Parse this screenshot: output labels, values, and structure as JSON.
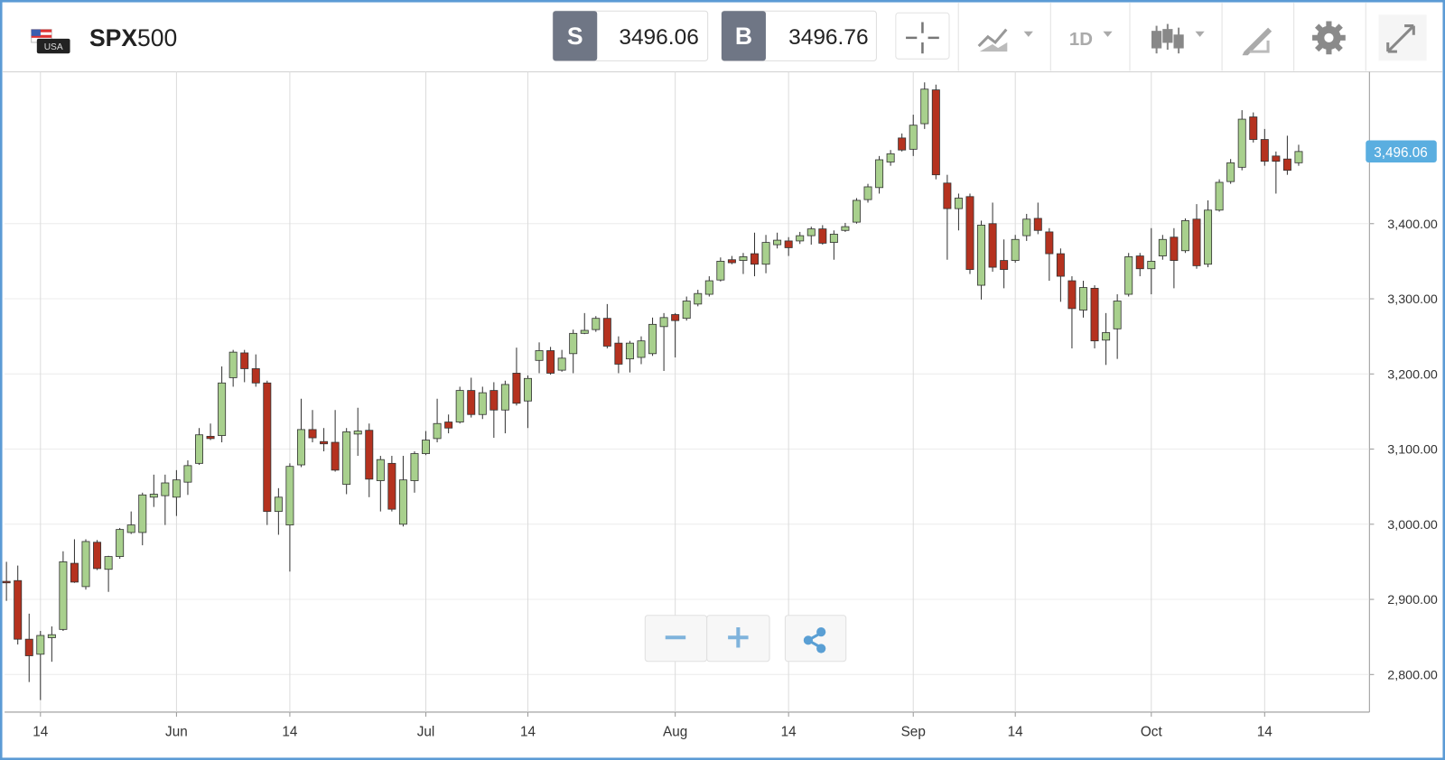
{
  "header": {
    "symbol": {
      "bold": "SPX",
      "rest": "500"
    },
    "flag_label": "USA",
    "sell": {
      "label": "S",
      "price": 3496.06
    },
    "buy": {
      "label": "B",
      "price": 3496.76
    },
    "interval": "1D"
  },
  "chart_data": {
    "type": "candlestick",
    "categories": [
      null,
      null,
      null,
      "14",
      null,
      null,
      null,
      null,
      null,
      null,
      null,
      null,
      null,
      null,
      null,
      "Jun",
      null,
      null,
      null,
      null,
      null,
      null,
      null,
      null,
      null,
      "14",
      null,
      null,
      null,
      null,
      null,
      null,
      null,
      null,
      null,
      null,
      null,
      "Jul",
      null,
      null,
      null,
      null,
      null,
      null,
      null,
      null,
      "14",
      null,
      null,
      null,
      null,
      null,
      null,
      null,
      null,
      null,
      null,
      null,
      null,
      "Aug",
      null,
      null,
      null,
      null,
      null,
      null,
      null,
      null,
      null,
      "14",
      null,
      null,
      null,
      null,
      null,
      null,
      null,
      null,
      null,
      null,
      "Sep",
      null,
      null,
      null,
      null,
      null,
      null,
      null,
      null,
      "14",
      null,
      null,
      null,
      null,
      null,
      null,
      null,
      null,
      null,
      null,
      null,
      "Oct",
      null,
      null,
      null,
      null,
      null,
      null,
      null,
      null,
      null,
      "14",
      null,
      null,
      null
    ],
    "open": [
      2924,
      2925,
      2847,
      2827,
      2849,
      2860,
      2948,
      2917,
      2976,
      2940,
      2957,
      2989,
      2989,
      3036,
      3038,
      3036,
      3056,
      3081,
      3117,
      3118,
      3195,
      3228,
      3207,
      3188,
      3017,
      2999,
      3079,
      3126,
      3110,
      3109,
      3053,
      3120,
      3125,
      3058,
      3081,
      3000,
      3058,
      3094,
      3114,
      3136,
      3136,
      3178,
      3146,
      3178,
      3152,
      3201,
      3164,
      3218,
      3231,
      3205,
      3227,
      3254,
      3259,
      3274,
      3241,
      3220,
      3222,
      3227,
      3263,
      3279,
      3274,
      3293,
      3306,
      3325,
      3352,
      3351,
      3360,
      3346,
      3372,
      3377,
      3377,
      3384,
      3393,
      3375,
      3391,
      3402,
      3432,
      3448,
      3482,
      3514,
      3499,
      3533,
      3578,
      3454,
      3420,
      3436,
      3318,
      3400,
      3351,
      3351,
      3384,
      3407,
      3389,
      3360,
      3324,
      3285,
      3314,
      3245,
      3260,
      3306,
      3357,
      3340,
      3357,
      3382,
      3364,
      3406,
      3346,
      3418,
      3456,
      3475,
      3542,
      3512,
      3490,
      3486,
      3481
    ],
    "high": [
      2950,
      2945,
      2881,
      2858,
      2864,
      2964,
      2980,
      2980,
      2979,
      2958,
      2995,
      3017,
      3042,
      3066,
      3066,
      3072,
      3085,
      3128,
      3134,
      3210,
      3232,
      3232,
      3226,
      3191,
      3048,
      3081,
      3167,
      3152,
      3128,
      3152,
      3128,
      3155,
      3134,
      3091,
      3091,
      3091,
      3097,
      3124,
      3167,
      3146,
      3183,
      3195,
      3183,
      3189,
      3191,
      3235,
      3198,
      3242,
      3236,
      3232,
      3259,
      3281,
      3277,
      3293,
      3250,
      3244,
      3250,
      3275,
      3281,
      3281,
      3303,
      3312,
      3330,
      3355,
      3357,
      3361,
      3388,
      3385,
      3388,
      3382,
      3389,
      3396,
      3398,
      3391,
      3401,
      3434,
      3453,
      3490,
      3498,
      3520,
      3545,
      3588,
      3585,
      3465,
      3440,
      3440,
      3404,
      3428,
      3379,
      3385,
      3413,
      3428,
      3394,
      3367,
      3330,
      3324,
      3318,
      3281,
      3306,
      3361,
      3361,
      3394,
      3385,
      3394,
      3407,
      3426,
      3431,
      3459,
      3486,
      3551,
      3548,
      3526,
      3496,
      3517,
      3505
    ],
    "low": [
      2898,
      2840,
      2790,
      2766,
      2817,
      2858,
      2922,
      2913,
      2939,
      2910,
      2954,
      2987,
      2972,
      3023,
      2999,
      3011,
      3039,
      3079,
      3112,
      3109,
      3183,
      3189,
      3183,
      2999,
      2986,
      2937,
      3076,
      3109,
      3097,
      3070,
      3040,
      3091,
      3036,
      3017,
      3017,
      2997,
      3042,
      3092,
      3109,
      3121,
      3134,
      3142,
      3140,
      3115,
      3121,
      3158,
      3128,
      3201,
      3199,
      3203,
      3201,
      3253,
      3256,
      3234,
      3201,
      3202,
      3213,
      3224,
      3204,
      3222,
      3271,
      3290,
      3303,
      3323,
      3346,
      3333,
      3330,
      3334,
      3367,
      3357,
      3373,
      3372,
      3372,
      3352,
      3389,
      3400,
      3428,
      3440,
      3477,
      3496,
      3490,
      3526,
      3459,
      3352,
      3391,
      3333,
      3299,
      3336,
      3314,
      3348,
      3377,
      3386,
      3324,
      3296,
      3234,
      3275,
      3234,
      3212,
      3220,
      3303,
      3330,
      3306,
      3352,
      3314,
      3361,
      3340,
      3342,
      3416,
      3453,
      3471,
      3508,
      3477,
      3440,
      3465,
      3477
    ],
    "close": [
      2922,
      2847,
      2825,
      2852,
      2853,
      2950,
      2923,
      2977,
      2941,
      2957,
      2993,
      2999,
      3039,
      3040,
      3055,
      3059,
      3078,
      3119,
      3114,
      3188,
      3229,
      3207,
      3188,
      3017,
      3036,
      3077,
      3126,
      3115,
      3107,
      3072,
      3123,
      3124,
      3060,
      3086,
      3020,
      3059,
      3094,
      3112,
      3134,
      3128,
      3178,
      3146,
      3175,
      3152,
      3186,
      3161,
      3194,
      3231,
      3201,
      3221,
      3254,
      3258,
      3274,
      3237,
      3213,
      3241,
      3244,
      3266,
      3275,
      3271,
      3297,
      3307,
      3324,
      3350,
      3348,
      3356,
      3346,
      3375,
      3378,
      3368,
      3384,
      3393,
      3374,
      3386,
      3396,
      3431,
      3449,
      3485,
      3493,
      3498,
      3531,
      3579,
      3465,
      3420,
      3434,
      3339,
      3398,
      3342,
      3339,
      3379,
      3406,
      3391,
      3360,
      3330,
      3287,
      3315,
      3244,
      3255,
      3297,
      3356,
      3340,
      3350,
      3379,
      3351,
      3404,
      3344,
      3418,
      3455,
      3481,
      3539,
      3512,
      3483,
      3483,
      3471,
      3496
    ],
    "up_color": "#a8d08d",
    "down_color": "#b5321f",
    "ylim": [
      2750,
      3602
    ],
    "yticks": [
      {
        "value": 2800,
        "label": "2,800.00"
      },
      {
        "value": 2900,
        "label": "2,900.00"
      },
      {
        "value": 3000,
        "label": "3,000.00"
      },
      {
        "value": 3100,
        "label": "3,100.00"
      },
      {
        "value": 3200,
        "label": "3,200.00"
      },
      {
        "value": 3300,
        "label": "3,300.00"
      },
      {
        "value": 3400,
        "label": "3,400.00"
      }
    ],
    "last_price": {
      "value": 3496.06,
      "label": "3,496.06"
    },
    "grid": true
  }
}
